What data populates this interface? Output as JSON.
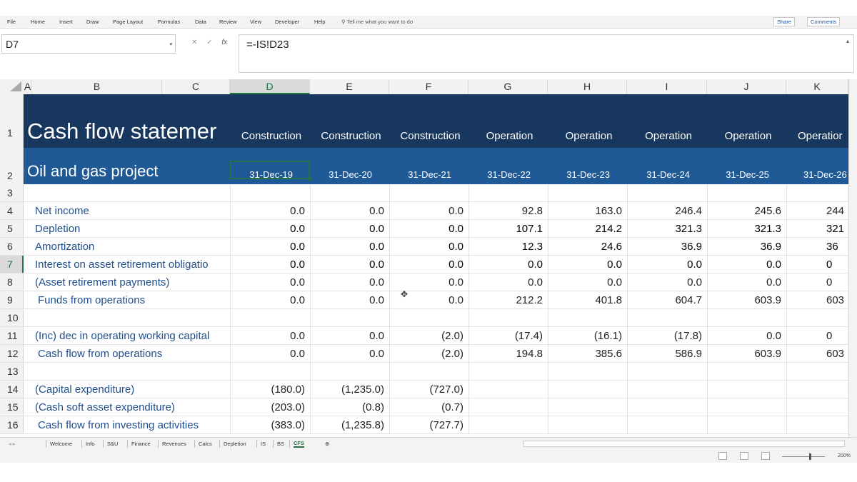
{
  "ribbon": {
    "tabs": [
      "File",
      "Home",
      "Insert",
      "Draw",
      "Page Layout",
      "Formulas",
      "Data",
      "Review",
      "View",
      "Developer",
      "Help"
    ],
    "tell_me": "Tell me what you want to do",
    "share": "Share",
    "comments": "Comments"
  },
  "formula_bar": {
    "name_box": "D7",
    "formula": "=-IS!D23"
  },
  "columns": [
    "A",
    "B",
    "C",
    "D",
    "E",
    "F",
    "G",
    "H",
    "I",
    "J",
    "K"
  ],
  "row_numbers": [
    "1",
    "2",
    "3",
    "4",
    "5",
    "6",
    "7",
    "8",
    "9",
    "10",
    "11",
    "12",
    "13",
    "14",
    "15",
    "16"
  ],
  "header": {
    "title": "Cash flow statemer",
    "subtitle": "Oil and gas project",
    "phases": [
      "Construction",
      "Construction",
      "Construction",
      "Operation",
      "Operation",
      "Operation",
      "Operation",
      "Operatior"
    ],
    "dates": [
      "31-Dec-19",
      "31-Dec-20",
      "31-Dec-21",
      "31-Dec-22",
      "31-Dec-23",
      "31-Dec-24",
      "31-Dec-25",
      "31-Dec-26"
    ]
  },
  "rows": [
    {
      "row": "4",
      "label": "Net income",
      "values": [
        "0.0",
        "0.0",
        "0.0",
        "92.8",
        "163.0",
        "246.4",
        "245.6",
        "244"
      ]
    },
    {
      "row": "5",
      "label": "Depletion",
      "values": [
        "0.0",
        "0.0",
        "0.0",
        "107.1",
        "214.2",
        "321.3",
        "321.3",
        "321"
      ]
    },
    {
      "row": "6",
      "label": "Amortization",
      "values": [
        "0.0",
        "0.0",
        "0.0",
        "12.3",
        "24.6",
        "36.9",
        "36.9",
        "36"
      ]
    },
    {
      "row": "7",
      "label": "Interest on asset retirement obligatio",
      "values": [
        "0.0",
        "0.0",
        "0.0",
        "0.0",
        "0.0",
        "0.0",
        "0.0",
        "0"
      ]
    },
    {
      "row": "8",
      "label": "(Asset retirement payments)",
      "values": [
        "0.0",
        "0.0",
        "0.0",
        "0.0",
        "0.0",
        "0.0",
        "0.0",
        "0"
      ]
    },
    {
      "row": "9",
      "label": "Funds from operations",
      "values": [
        "0.0",
        "0.0",
        "0.0",
        "212.2",
        "401.8",
        "604.7",
        "603.9",
        "603"
      ]
    },
    {
      "row": "11",
      "label": "(Inc) dec in operating working capital",
      "values": [
        "0.0",
        "0.0",
        "(2.0)",
        "(17.4)",
        "(16.1)",
        "(17.8)",
        "0.0",
        "0"
      ]
    },
    {
      "row": "12",
      "label": "Cash flow from operations",
      "values": [
        "0.0",
        "0.0",
        "(2.0)",
        "194.8",
        "385.6",
        "586.9",
        "603.9",
        "603"
      ]
    },
    {
      "row": "14",
      "label": "(Capital expenditure)",
      "values": [
        "(180.0)",
        "(1,235.0)",
        "(727.0)",
        "",
        "",
        "",
        "",
        ""
      ]
    },
    {
      "row": "15",
      "label": "(Cash soft asset expenditure)",
      "values": [
        "(203.0)",
        "(0.8)",
        "(0.7)",
        "",
        "",
        "",
        "",
        ""
      ]
    },
    {
      "row": "16",
      "label": "Cash flow from investing activities",
      "values": [
        "(383.0)",
        "(1,235.8)",
        "(727.7)",
        "",
        "",
        "",
        "",
        ""
      ]
    }
  ],
  "sheets": [
    "Welcome",
    "Info",
    "S&U",
    "Finance",
    "Revenues",
    "Calcs",
    "Depletion",
    "IS",
    "BS",
    "CFS"
  ],
  "active_sheet": "CFS",
  "zoom": "200%"
}
